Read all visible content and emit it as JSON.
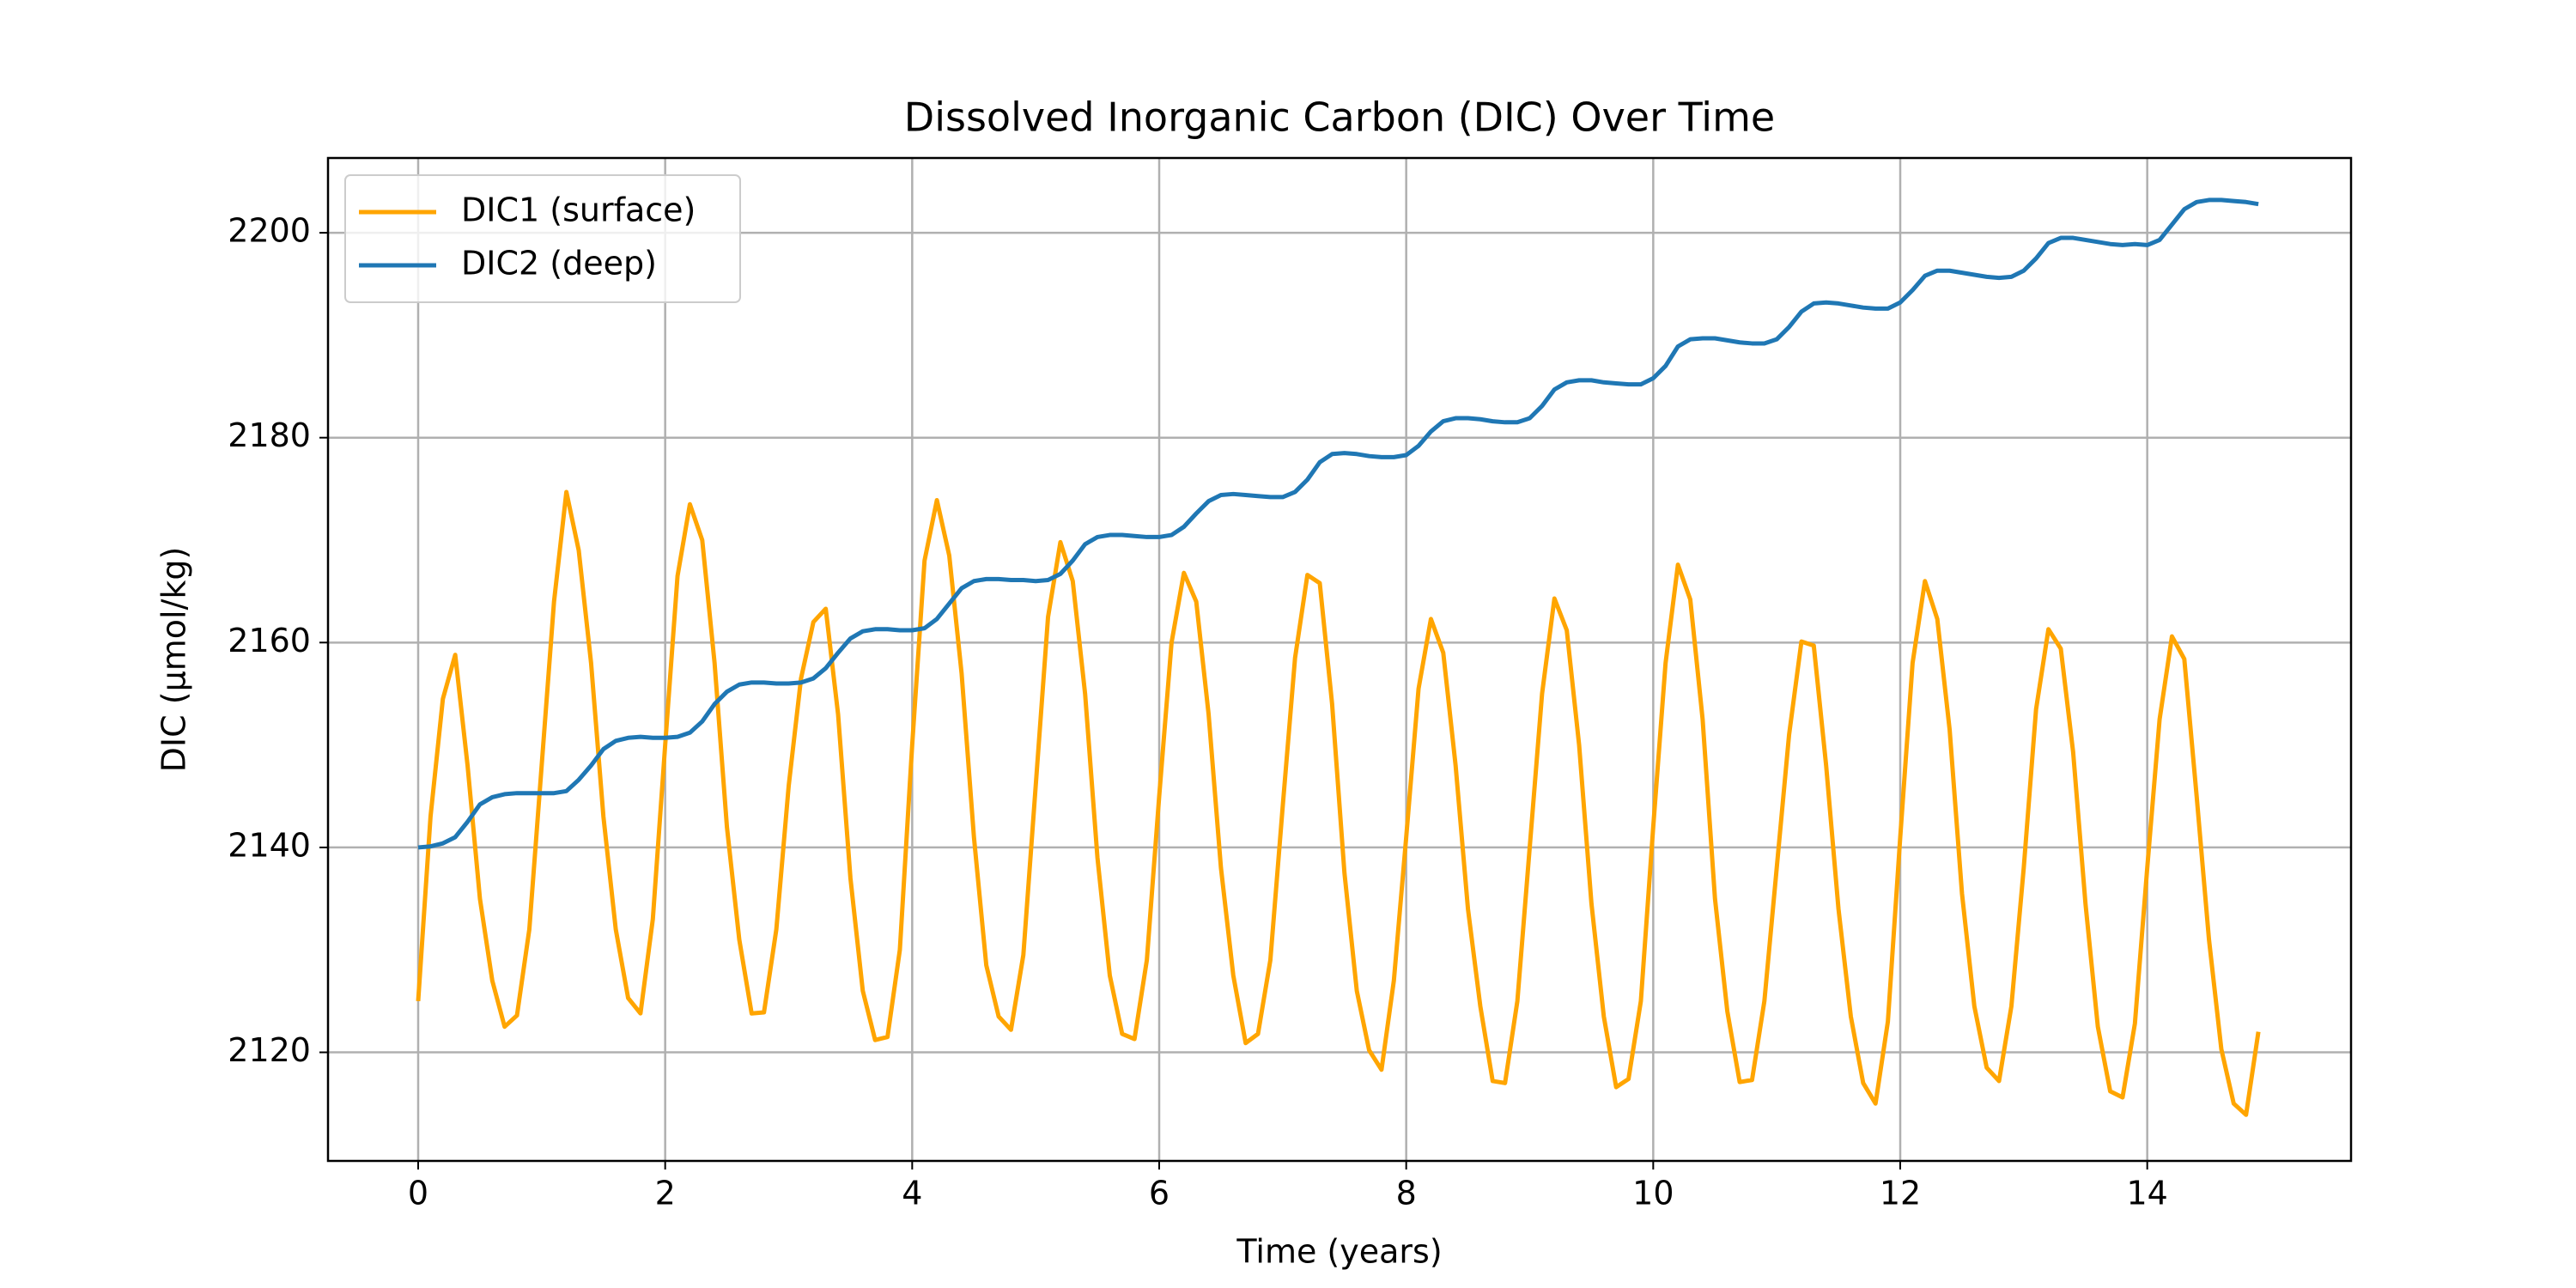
{
  "chart_data": {
    "type": "line",
    "title": "Dissolved Inorganic Carbon (DIC) Over Time",
    "x_label": "Time (years)",
    "y_label": "DIC (µmol/kg)",
    "xlim": [
      -0.73,
      15.65
    ],
    "ylim": [
      2109.4,
      2207.3
    ],
    "xticks": [
      0,
      2,
      4,
      6,
      8,
      10,
      12,
      14
    ],
    "yticks": [
      2120,
      2140,
      2160,
      2180,
      2200
    ],
    "grid": true,
    "legend": "upper-left",
    "x": [
      0,
      0.1,
      0.2,
      0.3,
      0.4,
      0.5,
      0.6,
      0.7,
      0.8,
      0.9,
      1,
      1.1,
      1.2,
      1.3,
      1.4,
      1.5,
      1.6,
      1.7,
      1.8,
      1.9,
      2,
      2.1,
      2.2,
      2.3,
      2.4,
      2.5,
      2.6,
      2.7,
      2.8,
      2.9,
      3,
      3.1,
      3.2,
      3.3,
      3.4,
      3.5,
      3.6,
      3.7,
      3.8,
      3.9,
      4,
      4.1,
      4.2,
      4.3,
      4.4,
      4.5,
      4.6,
      4.7,
      4.8,
      4.9,
      5,
      5.1,
      5.2,
      5.3,
      5.4,
      5.5,
      5.6,
      5.7,
      5.8,
      5.9,
      6,
      6.1,
      6.2,
      6.3,
      6.4,
      6.5,
      6.6,
      6.7,
      6.8,
      6.9,
      7,
      7.1,
      7.2,
      7.3,
      7.4,
      7.5,
      7.6,
      7.7,
      7.8,
      7.9,
      8,
      8.1,
      8.2,
      8.3,
      8.4,
      8.5,
      8.6,
      8.7,
      8.8,
      8.9,
      9,
      9.1,
      9.2,
      9.3,
      9.4,
      9.5,
      9.6,
      9.7,
      9.8,
      9.9,
      10,
      10.1,
      10.2,
      10.3,
      10.4,
      10.5,
      10.6,
      10.7,
      10.8,
      10.9,
      11,
      11.1,
      11.2,
      11.3,
      11.4,
      11.5,
      11.6,
      11.7,
      11.8,
      11.9,
      12,
      12.1,
      12.2,
      12.3,
      12.4,
      12.5,
      12.6,
      12.7,
      12.8,
      12.9,
      13,
      13.1,
      13.2,
      13.3,
      13.4,
      13.5,
      13.6,
      13.7,
      13.8,
      13.9,
      14,
      14.1,
      14.2,
      14.3,
      14.4,
      14.5,
      14.6,
      14.7,
      14.8,
      14.9
    ],
    "series": [
      {
        "name": "DIC1 (surface)",
        "color": "#ffa500",
        "values": [
          2125,
          2143,
          2154.5,
          2158.8,
          2148,
          2135,
          2127,
          2122.5,
          2123.6,
          2132,
          2148,
          2164,
          2174.7,
          2169,
          2158,
          2143,
          2132,
          2125.3,
          2123.8,
          2133,
          2150,
          2166.5,
          2173.5,
          2170,
          2158,
          2142,
          2131,
          2123.8,
          2123.9,
          2132,
          2146,
          2156.5,
          2162,
          2163.3,
          2153,
          2137,
          2126,
          2121.2,
          2121.5,
          2130,
          2150,
          2168,
          2173.9,
          2168.5,
          2157,
          2141,
          2128.5,
          2123.5,
          2122.2,
          2129.5,
          2146,
          2162.5,
          2169.8,
          2166,
          2155,
          2139,
          2127.5,
          2121.8,
          2121.3,
          2129,
          2145,
          2160,
          2166.8,
          2164,
          2153,
          2138,
          2127.5,
          2120.9,
          2121.8,
          2129,
          2144,
          2158.5,
          2166.6,
          2165.8,
          2154,
          2137.5,
          2126,
          2120.2,
          2118.3,
          2127,
          2141,
          2155.5,
          2162.3,
          2159,
          2148,
          2134,
          2124.5,
          2117.2,
          2117,
          2125,
          2140,
          2155,
          2164.3,
          2161.2,
          2150,
          2134.5,
          2123.5,
          2116.6,
          2117.4,
          2125,
          2142,
          2158,
          2167.6,
          2164.2,
          2152.5,
          2135,
          2124,
          2117.1,
          2117.3,
          2125,
          2138,
          2151,
          2160.1,
          2159.7,
          2148,
          2134,
          2123.5,
          2117,
          2115,
          2123,
          2141,
          2158,
          2166,
          2162.3,
          2151.5,
          2135.5,
          2124.5,
          2118.5,
          2117.2,
          2124.5,
          2138,
          2153.5,
          2161.3,
          2159.4,
          2149.3,
          2134.5,
          2122.5,
          2116.2,
          2115.6,
          2122.8,
          2138,
          2152.5,
          2160.6,
          2158.4,
          2145,
          2131,
          2120.3,
          2115,
          2113.9,
          2122
        ]
      },
      {
        "name": "DIC2 (deep)",
        "color": "#1f77b4",
        "values": [
          2140,
          2140.1,
          2140.4,
          2141,
          2142.5,
          2144.2,
          2144.9,
          2145.2,
          2145.3,
          2145.3,
          2145.3,
          2145.3,
          2145.5,
          2146.6,
          2148,
          2149.6,
          2150.4,
          2150.7,
          2150.8,
          2150.7,
          2150.7,
          2150.8,
          2151.2,
          2152.3,
          2154,
          2155.2,
          2155.9,
          2156.1,
          2156.1,
          2156,
          2156,
          2156.1,
          2156.5,
          2157.5,
          2159,
          2160.4,
          2161.1,
          2161.3,
          2161.3,
          2161.2,
          2161.2,
          2161.4,
          2162.3,
          2163.8,
          2165.3,
          2166,
          2166.2,
          2166.2,
          2166.1,
          2166.1,
          2166,
          2166.1,
          2166.7,
          2168,
          2169.6,
          2170.3,
          2170.5,
          2170.5,
          2170.4,
          2170.3,
          2170.3,
          2170.5,
          2171.3,
          2172.6,
          2173.8,
          2174.4,
          2174.5,
          2174.4,
          2174.3,
          2174.2,
          2174.2,
          2174.7,
          2175.9,
          2177.6,
          2178.4,
          2178.5,
          2178.4,
          2178.2,
          2178.1,
          2178.1,
          2178.3,
          2179.2,
          2180.6,
          2181.6,
          2181.9,
          2181.9,
          2181.8,
          2181.6,
          2181.5,
          2181.5,
          2181.9,
          2183.1,
          2184.7,
          2185.4,
          2185.6,
          2185.6,
          2185.4,
          2185.3,
          2185.2,
          2185.2,
          2185.8,
          2187,
          2188.9,
          2189.6,
          2189.7,
          2189.7,
          2189.5,
          2189.3,
          2189.2,
          2189.2,
          2189.6,
          2190.8,
          2192.3,
          2193.1,
          2193.2,
          2193.1,
          2192.9,
          2192.7,
          2192.6,
          2192.6,
          2193.2,
          2194.4,
          2195.8,
          2196.3,
          2196.3,
          2196.1,
          2195.9,
          2195.7,
          2195.6,
          2195.7,
          2196.3,
          2197.5,
          2199,
          2199.5,
          2199.5,
          2199.3,
          2199.1,
          2198.9,
          2198.8,
          2198.9,
          2198.8,
          2199.3,
          2200.8,
          2202.3,
          2203,
          2203.2,
          2203.2,
          2203.1,
          2203,
          2202.8
        ]
      }
    ]
  }
}
